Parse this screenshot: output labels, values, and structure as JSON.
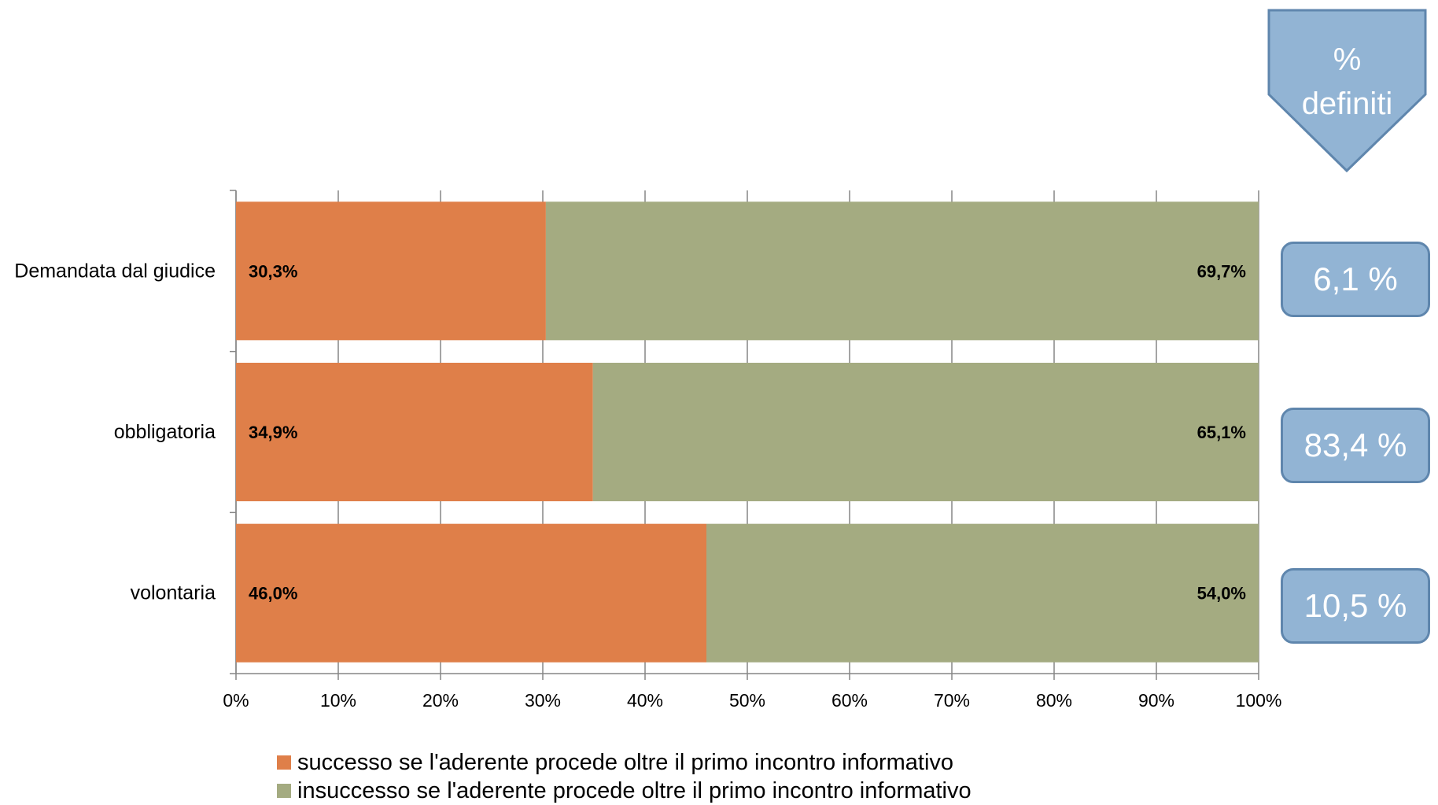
{
  "chart_data": {
    "type": "bar",
    "orientation": "horizontal",
    "stacked": "percent",
    "categories": [
      "Demandata dal giudice",
      "obbligatoria",
      "volontaria"
    ],
    "series": [
      {
        "name": "successo se l'aderente procede oltre il primo incontro informativo",
        "values": [
          30.3,
          34.9,
          46.0
        ],
        "labels": [
          "30,3%",
          "34,9%",
          "46,0%"
        ],
        "color": "#df7f49"
      },
      {
        "name": "insuccesso se l'aderente procede oltre il primo incontro informativo",
        "values": [
          69.7,
          65.1,
          54.0
        ],
        "labels": [
          "69,7%",
          "65,1%",
          "54,0%"
        ],
        "color": "#a4ab81"
      }
    ],
    "x_ticks": [
      "0%",
      "10%",
      "20%",
      "30%",
      "40%",
      "50%",
      "60%",
      "70%",
      "80%",
      "90%",
      "100%"
    ],
    "xlim": [
      0,
      100
    ],
    "grid": "vertical",
    "legend_position": "bottom"
  },
  "side_panel": {
    "header_line1": "%",
    "header_line2": "definiti",
    "values": [
      "6,1 %",
      "83,4 %",
      "10,5 %"
    ],
    "box_color": "#92b4d4",
    "border_color": "#5f86ad"
  }
}
